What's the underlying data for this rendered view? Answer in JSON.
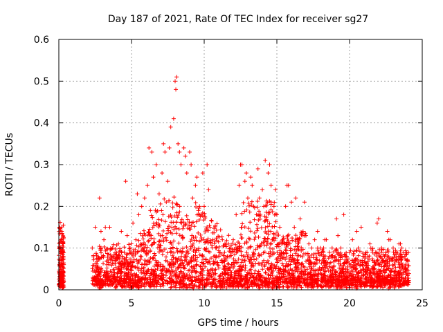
{
  "chart_data": {
    "type": "scatter",
    "title": "Day 187 of 2021, Rate Of TEC Index for receiver sg27",
    "xlabel": "GPS time / hours",
    "ylabel": "ROTI / TECUs",
    "xlim": [
      0,
      25
    ],
    "ylim": [
      0,
      0.6
    ],
    "x_ticks": [
      0,
      5,
      10,
      15,
      20,
      25
    ],
    "y_ticks": [
      0,
      0.1,
      0.2,
      0.3,
      0.4,
      0.5,
      0.6
    ],
    "x_tick_labels": [
      "0",
      "5",
      "10",
      "15",
      "20",
      "25"
    ],
    "y_tick_labels": [
      "0",
      "0.1",
      "0.2",
      "0.3",
      "0.4",
      "0.5",
      "0.6"
    ],
    "grid": true,
    "marker": "plus",
    "color": "#ff0000",
    "x": [
      0.05,
      0.1,
      0.15,
      0.2,
      0.25,
      0.3,
      0.1,
      0.2,
      0.05,
      0.15,
      2.3,
      2.5,
      2.7,
      2.9,
      3.1,
      3.3,
      3.5,
      3.7,
      3.9,
      4.1,
      4.3,
      4.5,
      4.7,
      4.9,
      5.1,
      5.3,
      5.5,
      5.7,
      5.9,
      6.1,
      6.3,
      6.5,
      6.7,
      6.9,
      7.1,
      7.3,
      7.5,
      7.7,
      7.9,
      8.0,
      8.05,
      8.1,
      8.2,
      8.4,
      8.6,
      8.8,
      9.0,
      9.2,
      9.4,
      9.6,
      9.8,
      10.0,
      10.2,
      10.4,
      10.6,
      10.8,
      11.0,
      11.2,
      11.4,
      11.6,
      11.8,
      12.0,
      12.2,
      12.4,
      12.6,
      12.8,
      13.0,
      13.2,
      13.4,
      13.6,
      13.8,
      14.0,
      14.2,
      14.4,
      14.6,
      14.8,
      15.0,
      15.2,
      15.4,
      15.6,
      15.8,
      16.0,
      16.2,
      16.4,
      16.6,
      16.8,
      17.0,
      17.2,
      17.4,
      17.6,
      17.8,
      18.0,
      18.2,
      18.4,
      18.6,
      18.8,
      19.0,
      19.2,
      19.4,
      19.6,
      19.8,
      20.0,
      20.2,
      20.4,
      20.6,
      20.8,
      21.0,
      21.2,
      21.4,
      21.6,
      21.8,
      22.0,
      22.2,
      22.4,
      22.6,
      22.8,
      23.0,
      23.2,
      23.4,
      23.6,
      23.8,
      24.0,
      2.8,
      3.2,
      4.6,
      5.4,
      6.2,
      6.4,
      7.2,
      7.6,
      8.3,
      8.7,
      9.1,
      9.5,
      9.9,
      10.3,
      12.5,
      12.9,
      13.3,
      13.7,
      14.1,
      14.5,
      14.9,
      15.7,
      16.3,
      16.9,
      18.3,
      19.1,
      20.5,
      21.9,
      22.7,
      23.5
    ],
    "y": [
      0.15,
      0.1,
      0.12,
      0.06,
      0.08,
      0.04,
      0.03,
      0.14,
      0.02,
      0.09,
      0.1,
      0.15,
      0.08,
      0.14,
      0.12,
      0.06,
      0.15,
      0.1,
      0.07,
      0.11,
      0.14,
      0.09,
      0.13,
      0.1,
      0.16,
      0.12,
      0.18,
      0.2,
      0.22,
      0.25,
      0.19,
      0.27,
      0.3,
      0.23,
      0.28,
      0.33,
      0.26,
      0.39,
      0.41,
      0.5,
      0.48,
      0.51,
      0.35,
      0.3,
      0.34,
      0.28,
      0.33,
      0.22,
      0.25,
      0.19,
      0.18,
      0.2,
      0.3,
      0.15,
      0.12,
      0.1,
      0.08,
      0.07,
      0.05,
      0.08,
      0.09,
      0.12,
      0.18,
      0.25,
      0.3,
      0.26,
      0.22,
      0.27,
      0.2,
      0.18,
      0.22,
      0.24,
      0.31,
      0.28,
      0.25,
      0.2,
      0.18,
      0.15,
      0.12,
      0.2,
      0.25,
      0.21,
      0.15,
      0.12,
      0.17,
      0.14,
      0.13,
      0.11,
      0.1,
      0.12,
      0.14,
      0.1,
      0.09,
      0.12,
      0.08,
      0.1,
      0.07,
      0.13,
      0.1,
      0.18,
      0.08,
      0.09,
      0.12,
      0.07,
      0.1,
      0.15,
      0.08,
      0.09,
      0.11,
      0.07,
      0.09,
      0.17,
      0.1,
      0.08,
      0.14,
      0.12,
      0.1,
      0.09,
      0.11,
      0.1,
      0.08,
      0.07,
      0.22,
      0.15,
      0.26,
      0.23,
      0.34,
      0.33,
      0.35,
      0.34,
      0.33,
      0.32,
      0.3,
      0.27,
      0.28,
      0.24,
      0.3,
      0.28,
      0.25,
      0.29,
      0.2,
      0.3,
      0.24,
      0.25,
      0.22,
      0.21,
      0.12,
      0.17,
      0.14,
      0.16,
      0.12,
      0.11
    ]
  }
}
